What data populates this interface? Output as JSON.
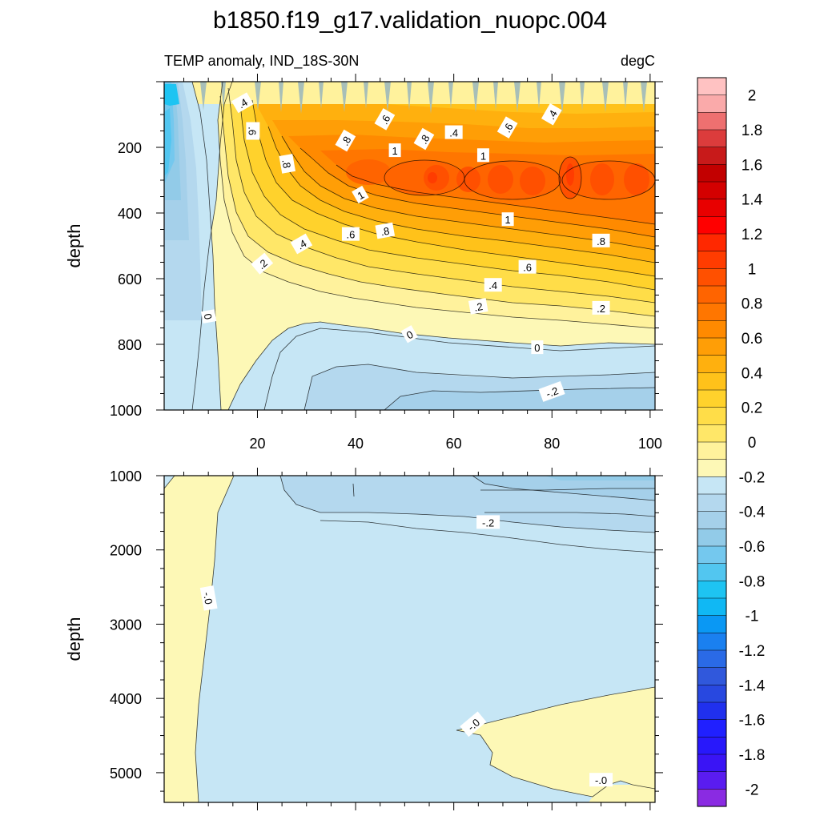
{
  "chart_data": {
    "type": "heatmap",
    "title": "b1850.f19_g17.validation_nuopc.004",
    "variable_label": "TEMP anomaly, IND_18S-30N",
    "units": "degC",
    "xlim": [
      1,
      101
    ],
    "x_ticks": [
      "20",
      "40",
      "60",
      "80",
      "100"
    ],
    "colorbar": {
      "levels": [
        -2.1,
        -2.0,
        -1.9,
        -1.8,
        -1.7,
        -1.6,
        -1.5,
        -1.4,
        -1.3,
        -1.2,
        -1.1,
        -1.0,
        -0.9,
        -0.8,
        -0.7,
        -0.6,
        -0.5,
        -0.4,
        -0.3,
        -0.2,
        -0.1,
        0.0,
        0.1,
        0.2,
        0.3,
        0.4,
        0.5,
        0.6,
        0.7,
        0.8,
        0.9,
        1.0,
        1.1,
        1.2,
        1.3,
        1.4,
        1.5,
        1.6,
        1.7,
        1.8,
        1.9,
        2.0,
        2.1
      ],
      "colors": [
        "#8a2be2",
        "#5a1cf0",
        "#3a14f5",
        "#2818fb",
        "#2020ff",
        "#2030ee",
        "#2848e0",
        "#3058dc",
        "#2a6ae6",
        "#1a80f0",
        "#0a98f4",
        "#10b8f4",
        "#1ec4f2",
        "#52c6f0",
        "#74c8ee",
        "#92cbe8",
        "#a5d0ea",
        "#b4d8ee",
        "#c6e6f5",
        "#fdf8b6",
        "#fff29c",
        "#ffe768",
        "#ffdd48",
        "#ffd22c",
        "#ffc21a",
        "#ffb00e",
        "#ff9e06",
        "#ff8a00",
        "#ff7600",
        "#ff6400",
        "#ff5000",
        "#ff3c00",
        "#ff2800",
        "#ff0000",
        "#e80000",
        "#d40000",
        "#c20000",
        "#c81a1a",
        "#dc3c3c",
        "#ee7070",
        "#faaaaa",
        "#ffc2c2"
      ],
      "tick_labels": [
        "2",
        "1.8",
        "1.6",
        "1.4",
        "1.2",
        "1",
        "0.8",
        "0.6",
        "0.4",
        "0.2",
        "0",
        "-0.2",
        "-0.4",
        "-0.6",
        "-0.8",
        "-1",
        "-1.2",
        "-1.4",
        "-1.6",
        "-1.8",
        "-2"
      ]
    },
    "panels": [
      {
        "ylabel": "depth",
        "ylim": [
          0,
          1000
        ],
        "y_ticks": [
          "200",
          "400",
          "600",
          "800",
          "1000"
        ],
        "contour_labels": [
          {
            "text": ".4",
            "x": 17,
            "y": 65,
            "rot": -30
          },
          {
            "text": ".6",
            "x": 19,
            "y": 150,
            "rot": 90
          },
          {
            "text": ".8",
            "x": 38,
            "y": 180,
            "rot": -60
          },
          {
            "text": ".6",
            "x": 46,
            "y": 115,
            "rot": -60
          },
          {
            "text": ".8",
            "x": 26,
            "y": 250,
            "rot": 80
          },
          {
            "text": "1",
            "x": 48,
            "y": 210,
            "rot": 0
          },
          {
            "text": ".8",
            "x": 54,
            "y": 175,
            "rot": -60
          },
          {
            "text": ".4",
            "x": 60,
            "y": 155,
            "rot": 0
          },
          {
            "text": ".6",
            "x": 71,
            "y": 140,
            "rot": -60
          },
          {
            "text": ".4",
            "x": 80,
            "y": 100,
            "rot": -60
          },
          {
            "text": "1",
            "x": 66,
            "y": 225,
            "rot": 0
          },
          {
            "text": "1",
            "x": 41,
            "y": 345,
            "rot": -30
          },
          {
            "text": ".6",
            "x": 39,
            "y": 465,
            "rot": 0
          },
          {
            "text": ".8",
            "x": 46,
            "y": 455,
            "rot": -10
          },
          {
            "text": ".4",
            "x": 29,
            "y": 495,
            "rot": -30
          },
          {
            "text": ".2",
            "x": 21,
            "y": 555,
            "rot": -40
          },
          {
            "text": "1",
            "x": 71,
            "y": 420,
            "rot": 0
          },
          {
            "text": ".8",
            "x": 90,
            "y": 485,
            "rot": 0
          },
          {
            "text": ".6",
            "x": 75,
            "y": 565,
            "rot": 0
          },
          {
            "text": ".4",
            "x": 68,
            "y": 620,
            "rot": 0
          },
          {
            "text": ".2",
            "x": 65,
            "y": 685,
            "rot": -10
          },
          {
            "text": ".2",
            "x": 90,
            "y": 690,
            "rot": 0
          },
          {
            "text": "0",
            "x": 10,
            "y": 715,
            "rot": 80
          },
          {
            "text": "0",
            "x": 51,
            "y": 770,
            "rot": -30
          },
          {
            "text": "0",
            "x": 77,
            "y": 810,
            "rot": 0
          },
          {
            "text": "-.2",
            "x": 80,
            "y": 945,
            "rot": -20
          }
        ]
      },
      {
        "ylabel": "depth",
        "ylim": [
          1000,
          5400
        ],
        "y_ticks": [
          "1000",
          "2000",
          "3000",
          "4000",
          "5000"
        ],
        "contour_labels": [
          {
            "text": "-.2",
            "x": 67,
            "y": 1630,
            "rot": 0
          },
          {
            "text": "-.0",
            "x": 10,
            "y": 2650,
            "rot": 80
          },
          {
            "text": "-.0",
            "x": 64,
            "y": 4350,
            "rot": -40
          },
          {
            "text": "-.0",
            "x": 90,
            "y": 5100,
            "rot": 0
          }
        ]
      }
    ]
  }
}
